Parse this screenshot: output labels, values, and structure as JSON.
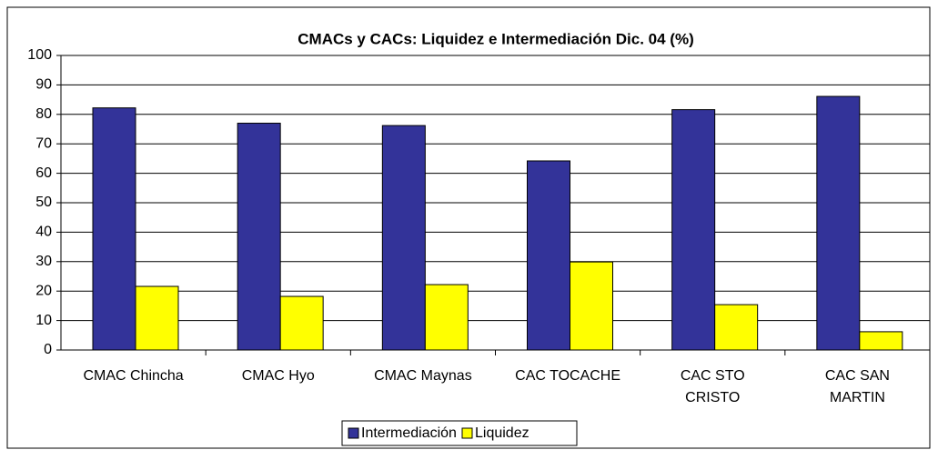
{
  "chart_data": {
    "type": "bar",
    "title": "CMACs y CACs: Liquidez e Intermediación  Dic. 04 (%)",
    "categories": [
      "CMAC Chincha",
      "CMAC Hyo",
      "CMAC Maynas",
      "CAC TOCACHE",
      "CAC STO\nCRISTO",
      "CAC SAN\nMARTIN"
    ],
    "series": [
      {
        "name": "Intermediación",
        "color": "#333399",
        "values": [
          82.2,
          77,
          76.2,
          64.2,
          81.6,
          86.1
        ]
      },
      {
        "name": "Liquidez",
        "color": "#ffff00",
        "values": [
          21.6,
          18.2,
          22.2,
          29.9,
          15.4,
          6.2
        ]
      }
    ],
    "ylim": [
      0,
      100
    ],
    "yticks": [
      0,
      10,
      20,
      30,
      40,
      50,
      60,
      70,
      80,
      90,
      100
    ],
    "grid": true,
    "legend": "bottom"
  }
}
